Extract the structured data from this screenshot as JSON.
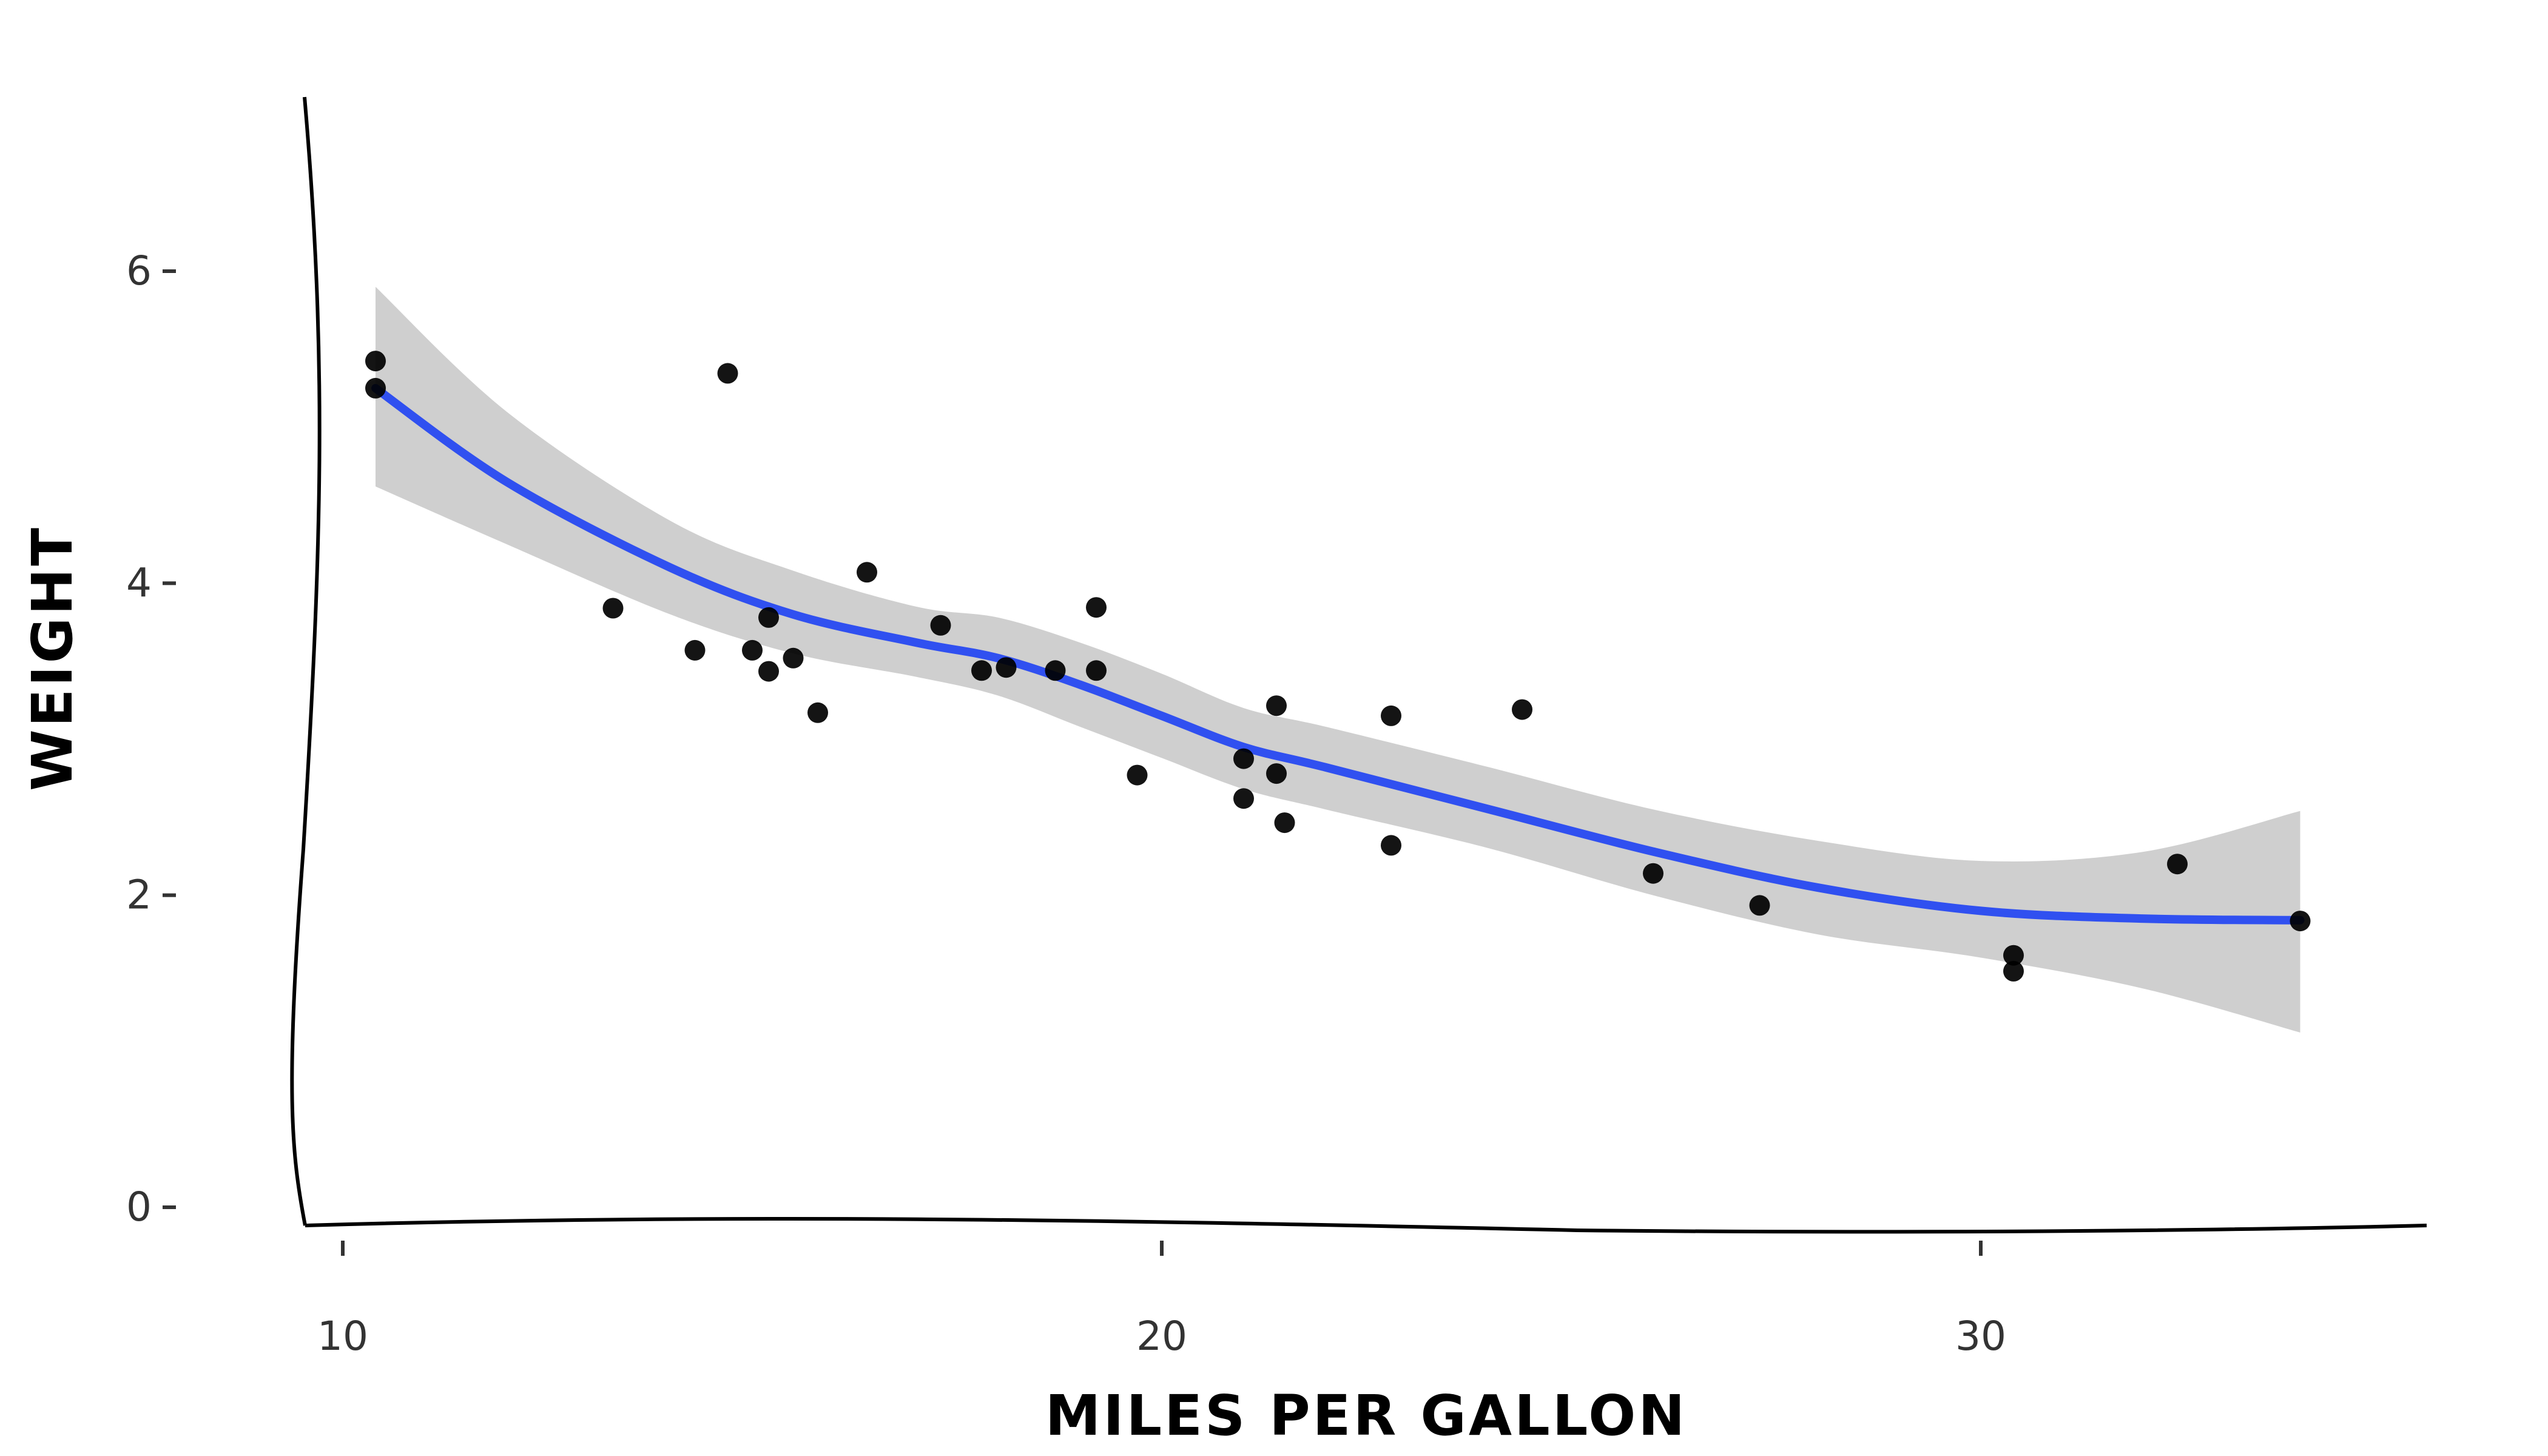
{
  "chart_data": {
    "type": "scatter",
    "title": "",
    "xlabel": "MILES PER GALLON",
    "ylabel": "WEIGHT",
    "xlim": [
      9.5,
      35.5
    ],
    "ylim": [
      -0.2,
      7.2
    ],
    "xticks": [
      10,
      20,
      30
    ],
    "yticks": [
      0,
      2,
      4,
      6
    ],
    "grid": false,
    "legend": "none",
    "colors": {
      "points": "#000000",
      "smooth": "#3050f0",
      "ribbon": "#cfcfcf",
      "axis": "#000000",
      "tick_text": "#333333"
    },
    "points": [
      {
        "x": 21.0,
        "y": 2.62
      },
      {
        "x": 21.0,
        "y": 2.875
      },
      {
        "x": 22.8,
        "y": 2.32
      },
      {
        "x": 21.4,
        "y": 3.215
      },
      {
        "x": 18.7,
        "y": 3.44
      },
      {
        "x": 18.1,
        "y": 3.46
      },
      {
        "x": 14.3,
        "y": 3.57
      },
      {
        "x": 24.4,
        "y": 3.19
      },
      {
        "x": 22.8,
        "y": 3.15
      },
      {
        "x": 19.2,
        "y": 3.44
      },
      {
        "x": 17.8,
        "y": 3.44
      },
      {
        "x": 16.4,
        "y": 4.07
      },
      {
        "x": 17.3,
        "y": 3.73
      },
      {
        "x": 15.2,
        "y": 3.78
      },
      {
        "x": 10.4,
        "y": 5.25
      },
      {
        "x": 10.4,
        "y": 5.424
      },
      {
        "x": 14.7,
        "y": 5.345
      },
      {
        "x": 32.4,
        "y": 2.2
      },
      {
        "x": 30.4,
        "y": 1.615
      },
      {
        "x": 33.9,
        "y": 1.835
      },
      {
        "x": 21.5,
        "y": 2.465
      },
      {
        "x": 15.5,
        "y": 3.52
      },
      {
        "x": 15.2,
        "y": 3.435
      },
      {
        "x": 13.3,
        "y": 3.84
      },
      {
        "x": 19.2,
        "y": 3.845
      },
      {
        "x": 27.3,
        "y": 1.935
      },
      {
        "x": 26.0,
        "y": 2.14
      },
      {
        "x": 30.4,
        "y": 1.513
      },
      {
        "x": 15.8,
        "y": 3.17
      },
      {
        "x": 19.7,
        "y": 2.77
      },
      {
        "x": 15.0,
        "y": 3.57
      },
      {
        "x": 21.4,
        "y": 2.78
      }
    ],
    "smooth": {
      "x": [
        10.4,
        12,
        14,
        15.5,
        17,
        18,
        19,
        20,
        21,
        22,
        24,
        26,
        28,
        30,
        32,
        33.9
      ],
      "y": [
        5.25,
        4.65,
        4.1,
        3.8,
        3.62,
        3.52,
        3.35,
        3.15,
        2.95,
        2.82,
        2.55,
        2.28,
        2.05,
        1.9,
        1.85,
        1.84
      ],
      "lower": [
        4.62,
        4.25,
        3.8,
        3.55,
        3.4,
        3.28,
        3.08,
        2.88,
        2.68,
        2.55,
        2.3,
        2.0,
        1.75,
        1.6,
        1.4,
        1.12
      ],
      "upper": [
        5.9,
        5.1,
        4.4,
        4.08,
        3.85,
        3.78,
        3.62,
        3.42,
        3.2,
        3.08,
        2.82,
        2.55,
        2.35,
        2.22,
        2.28,
        2.54
      ]
    }
  }
}
